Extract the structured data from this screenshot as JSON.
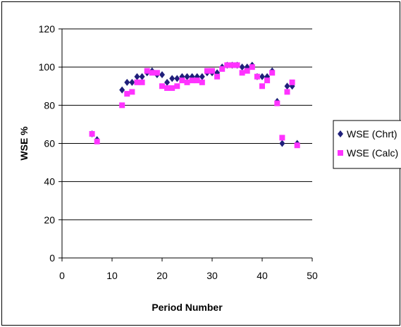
{
  "chart_data": {
    "type": "scatter",
    "title": "",
    "xlabel": "Period Number",
    "ylabel": "WSE %",
    "xlim": [
      0,
      50
    ],
    "ylim": [
      0,
      120
    ],
    "xticks": [
      0,
      10,
      20,
      30,
      40,
      50
    ],
    "yticks": [
      0,
      20,
      40,
      60,
      80,
      100,
      120
    ],
    "grid": "horizontal",
    "legend_position": "right",
    "series": [
      {
        "name": "WSE (Chrt)",
        "marker": "diamond",
        "color": "#1f1f7a",
        "points": [
          [
            6,
            65
          ],
          [
            7,
            62
          ],
          [
            12,
            88
          ],
          [
            13,
            92
          ],
          [
            14,
            92
          ],
          [
            15,
            95
          ],
          [
            16,
            95
          ],
          [
            17,
            97
          ],
          [
            18,
            98
          ],
          [
            19,
            96
          ],
          [
            20,
            96
          ],
          [
            21,
            92
          ],
          [
            22,
            94
          ],
          [
            23,
            94
          ],
          [
            24,
            95
          ],
          [
            25,
            95
          ],
          [
            26,
            95
          ],
          [
            27,
            95
          ],
          [
            28,
            95
          ],
          [
            29,
            97
          ],
          [
            30,
            97
          ],
          [
            31,
            97
          ],
          [
            32,
            100
          ],
          [
            33,
            101
          ],
          [
            34,
            101
          ],
          [
            35,
            101
          ],
          [
            36,
            100
          ],
          [
            37,
            100
          ],
          [
            38,
            101
          ],
          [
            39,
            95
          ],
          [
            40,
            95
          ],
          [
            41,
            95
          ],
          [
            42,
            98
          ],
          [
            43,
            82
          ],
          [
            44,
            60
          ],
          [
            45,
            90
          ],
          [
            46,
            90
          ],
          [
            47,
            60
          ]
        ]
      },
      {
        "name": "WSE (Calc)",
        "marker": "square",
        "color": "#ff33ff",
        "points": [
          [
            6,
            65
          ],
          [
            7,
            61
          ],
          [
            12,
            80
          ],
          [
            13,
            86
          ],
          [
            14,
            87
          ],
          [
            15,
            92
          ],
          [
            16,
            92
          ],
          [
            17,
            98
          ],
          [
            18,
            97
          ],
          [
            19,
            97
          ],
          [
            20,
            90
          ],
          [
            21,
            89
          ],
          [
            22,
            89
          ],
          [
            23,
            90
          ],
          [
            24,
            93
          ],
          [
            25,
            92
          ],
          [
            26,
            93
          ],
          [
            27,
            93
          ],
          [
            28,
            92
          ],
          [
            29,
            98
          ],
          [
            30,
            98
          ],
          [
            31,
            95
          ],
          [
            32,
            99
          ],
          [
            33,
            101
          ],
          [
            34,
            101
          ],
          [
            35,
            101
          ],
          [
            36,
            97
          ],
          [
            37,
            98
          ],
          [
            38,
            100
          ],
          [
            39,
            95
          ],
          [
            40,
            90
          ],
          [
            41,
            93
          ],
          [
            42,
            97
          ],
          [
            43,
            81
          ],
          [
            44,
            63
          ],
          [
            45,
            87
          ],
          [
            46,
            92
          ],
          [
            47,
            59
          ]
        ]
      }
    ]
  }
}
